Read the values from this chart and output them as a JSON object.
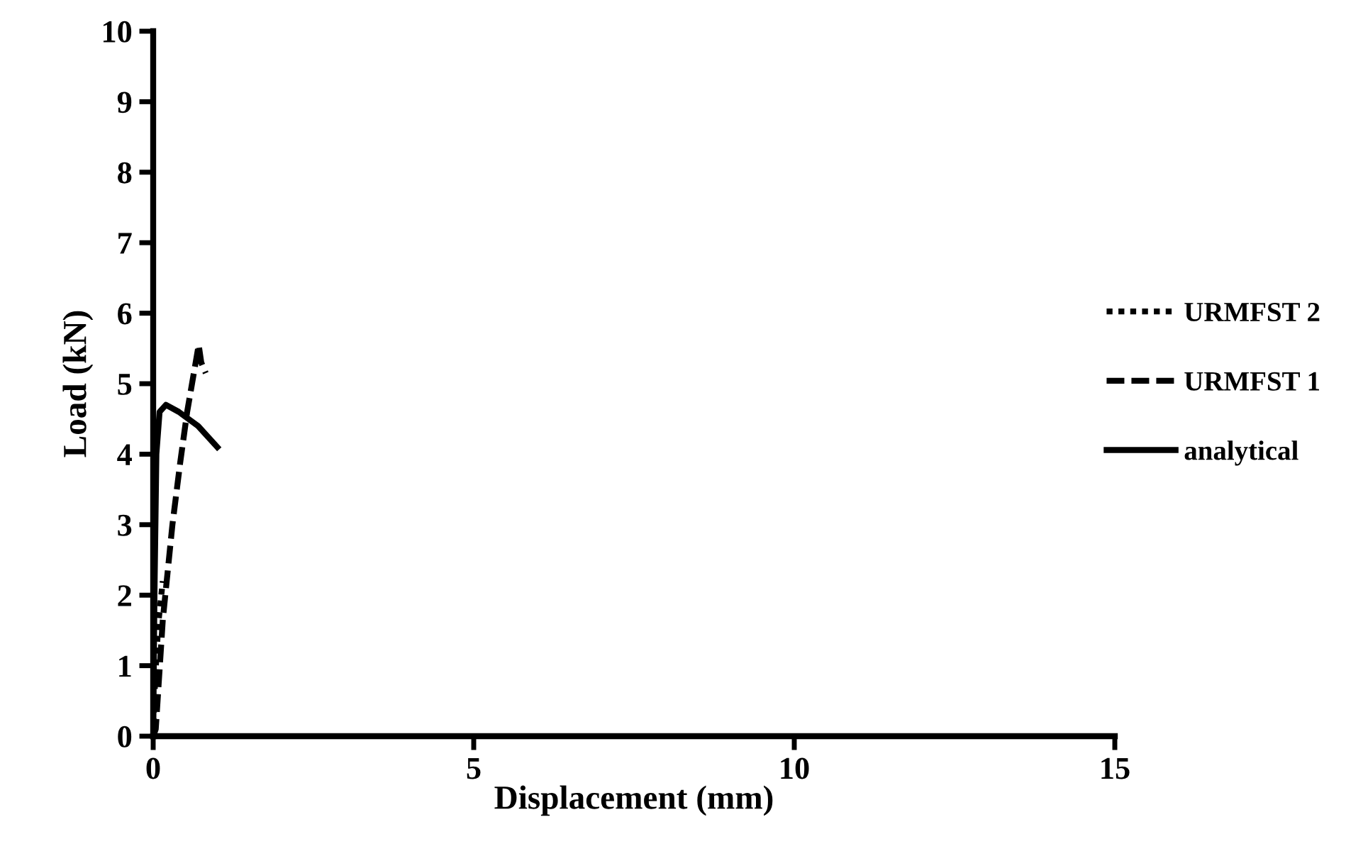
{
  "chart_data": {
    "type": "line",
    "xlabel": "Displacement (mm)",
    "ylabel": "Load (kN)",
    "xlim": [
      0,
      15
    ],
    "xticks": [
      0,
      5,
      10,
      15
    ],
    "ylim": [
      0,
      10
    ],
    "yticks": [
      0,
      1,
      2,
      3,
      4,
      5,
      6,
      7,
      8,
      9,
      10
    ],
    "grid": false,
    "legend": "right",
    "marker": "none",
    "series": [
      {
        "name": "URMFST 2",
        "color": "#000000",
        "line_style": "dotted",
        "x": [
          0,
          0.03,
          0.08,
          0.15
        ],
        "values": [
          0,
          0.8,
          1.6,
          2.2
        ]
      },
      {
        "name": "URMFST 1",
        "color": "#000000",
        "line_style": "dashed",
        "x": [
          0,
          0.04,
          0.15,
          0.3,
          0.42,
          0.53,
          0.71,
          0.75,
          0.82
        ],
        "values": [
          0,
          0.1,
          1.65,
          3.0,
          3.87,
          4.6,
          5.55,
          5.3,
          5.15
        ]
      },
      {
        "name": "analytical",
        "color": "#000000",
        "line_style": "solid",
        "x": [
          0,
          0.02,
          0.05,
          0.1,
          0.2,
          0.4,
          0.7,
          1.0
        ],
        "values": [
          0,
          2,
          4,
          4.6,
          4.7,
          4.6,
          4.4,
          4.1
        ]
      }
    ]
  }
}
